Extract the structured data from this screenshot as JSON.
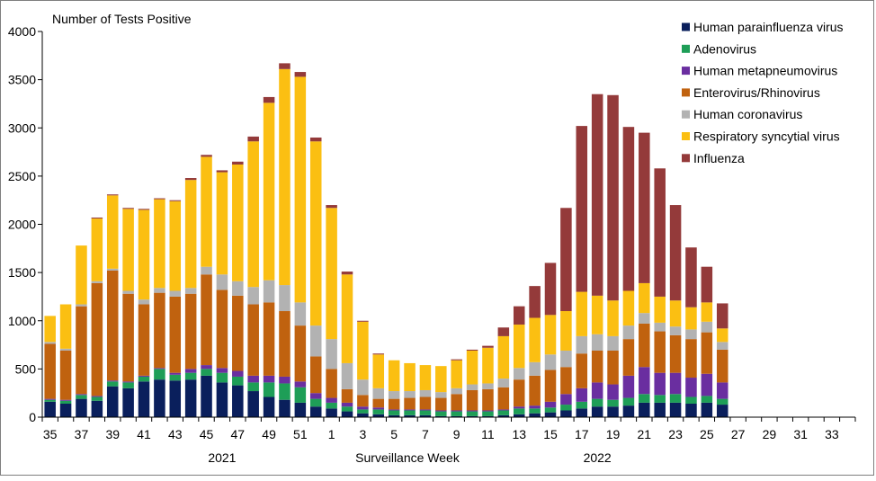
{
  "chart_data": {
    "type": "bar",
    "stacked": true,
    "ylabel": "Number of Tests Positive",
    "xlabel": "Surveillance Week",
    "ylim": [
      0,
      4000
    ],
    "yticks": [
      0,
      500,
      1000,
      1500,
      2000,
      2500,
      3000,
      3500,
      4000
    ],
    "grid": false,
    "legend_position": "top-right",
    "categories": [
      "35",
      "36",
      "37",
      "38",
      "39",
      "40",
      "41",
      "42",
      "43",
      "44",
      "45",
      "46",
      "47",
      "48",
      "49",
      "50",
      "51",
      "52",
      "1",
      "2",
      "3",
      "4",
      "5",
      "6",
      "7",
      "8",
      "9",
      "10",
      "11",
      "12",
      "13",
      "14",
      "15",
      "16",
      "17",
      "18",
      "19",
      "20",
      "21",
      "22",
      "23",
      "24",
      "25",
      "26",
      "27",
      "28",
      "29",
      "30",
      "31",
      "32",
      "33",
      "34"
    ],
    "tick_labels": [
      "35",
      "37",
      "39",
      "41",
      "43",
      "45",
      "47",
      "49",
      "51",
      "1",
      "3",
      "5",
      "7",
      "9",
      "11",
      "13",
      "15",
      "17",
      "19",
      "21",
      "23",
      "25",
      "27",
      "29",
      "31",
      "33"
    ],
    "year_labels": [
      {
        "label": "2021",
        "category": "46"
      },
      {
        "label": "2022",
        "category": "18"
      }
    ],
    "series": [
      {
        "name": "Human parainfluenza virus",
        "color": "#0a1f5c",
        "values": [
          160,
          140,
          190,
          170,
          320,
          300,
          370,
          390,
          380,
          390,
          430,
          360,
          330,
          270,
          210,
          180,
          150,
          110,
          90,
          60,
          40,
          30,
          20,
          20,
          20,
          10,
          10,
          10,
          10,
          20,
          30,
          40,
          50,
          70,
          90,
          110,
          110,
          120,
          150,
          150,
          150,
          140,
          150,
          130,
          0,
          0,
          0,
          0,
          0,
          0,
          0,
          0
        ]
      },
      {
        "name": "Adenovirus",
        "color": "#1e9e57",
        "values": [
          20,
          30,
          40,
          40,
          50,
          60,
          50,
          110,
          60,
          70,
          70,
          100,
          90,
          90,
          150,
          170,
          160,
          80,
          60,
          50,
          40,
          50,
          50,
          50,
          50,
          50,
          50,
          50,
          50,
          50,
          60,
          50,
          50,
          60,
          70,
          80,
          70,
          80,
          90,
          80,
          90,
          70,
          70,
          60,
          0,
          0,
          0,
          0,
          0,
          0,
          0,
          0
        ]
      },
      {
        "name": "Human metapneumovirus",
        "color": "#6a2ea0",
        "values": [
          10,
          10,
          10,
          10,
          10,
          10,
          10,
          10,
          20,
          40,
          40,
          50,
          60,
          70,
          70,
          70,
          60,
          60,
          50,
          40,
          30,
          20,
          10,
          10,
          10,
          10,
          10,
          10,
          10,
          10,
          20,
          30,
          60,
          110,
          140,
          170,
          160,
          230,
          280,
          230,
          220,
          200,
          230,
          170,
          0,
          0,
          0,
          0,
          0,
          0,
          0,
          0
        ]
      },
      {
        "name": "Enterovirus/Rhinovirus",
        "color": "#c0620f",
        "values": [
          570,
          510,
          910,
          1170,
          1140,
          910,
          740,
          780,
          790,
          780,
          940,
          810,
          780,
          740,
          760,
          680,
          580,
          380,
          300,
          140,
          120,
          90,
          110,
          120,
          130,
          130,
          170,
          210,
          220,
          230,
          280,
          310,
          330,
          280,
          360,
          330,
          350,
          380,
          450,
          430,
          390,
          400,
          430,
          340,
          0,
          0,
          0,
          0,
          0,
          0,
          0,
          0
        ]
      },
      {
        "name": "Human coronavirus",
        "color": "#b2b2b2",
        "values": [
          20,
          20,
          20,
          20,
          20,
          30,
          50,
          50,
          60,
          60,
          80,
          160,
          150,
          180,
          230,
          270,
          240,
          320,
          310,
          270,
          160,
          110,
          80,
          70,
          70,
          60,
          60,
          60,
          60,
          90,
          120,
          140,
          160,
          170,
          180,
          170,
          150,
          140,
          110,
          90,
          90,
          100,
          110,
          80,
          0,
          0,
          0,
          0,
          0,
          0,
          0,
          0
        ]
      },
      {
        "name": "Respiratory syncytial virus",
        "color": "#fbbf12",
        "values": [
          270,
          460,
          610,
          650,
          760,
          850,
          930,
          920,
          930,
          1120,
          1140,
          1060,
          1210,
          1510,
          1840,
          2240,
          2340,
          1910,
          1360,
          920,
          600,
          350,
          320,
          290,
          260,
          270,
          290,
          350,
          370,
          440,
          450,
          460,
          410,
          410,
          460,
          400,
          370,
          360,
          310,
          270,
          270,
          230,
          200,
          140,
          0,
          0,
          0,
          0,
          0,
          0,
          0,
          0
        ]
      },
      {
        "name": "Influenza",
        "color": "#943a3a",
        "values": [
          0,
          0,
          0,
          10,
          10,
          10,
          10,
          10,
          10,
          20,
          20,
          20,
          30,
          50,
          60,
          60,
          50,
          40,
          30,
          30,
          10,
          10,
          0,
          0,
          0,
          0,
          10,
          10,
          20,
          90,
          190,
          330,
          540,
          1070,
          1720,
          2090,
          2130,
          1700,
          1560,
          1330,
          990,
          620,
          370,
          260,
          0,
          0,
          0,
          0,
          0,
          0,
          0,
          0
        ]
      }
    ]
  }
}
